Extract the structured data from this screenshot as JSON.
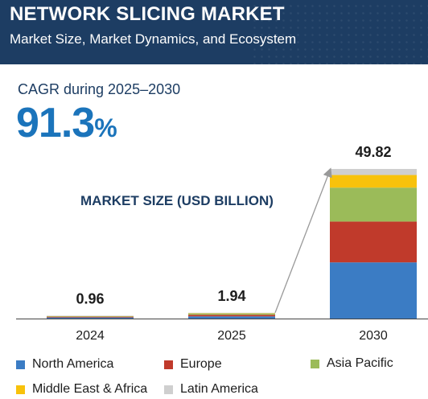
{
  "header": {
    "title": "NETWORK SLICING MARKET",
    "subtitle": "Market Size, Market Dynamics, and Ecosystem"
  },
  "cagr": {
    "label": "CAGR during 2025–2030",
    "value": "91.3",
    "unit": "%"
  },
  "chart_data": {
    "type": "bar",
    "stacked": true,
    "title": "MARKET SIZE (USD BILLION)",
    "categories": [
      "2024",
      "2025",
      "2030"
    ],
    "totals": [
      "0.96",
      "1.94",
      "49.82"
    ],
    "series": [
      {
        "name": "North America",
        "color": "#3b7cc4",
        "values": [
          0.36,
          0.73,
          18.7
        ]
      },
      {
        "name": "Europe",
        "color": "#c03a2b",
        "values": [
          0.26,
          0.53,
          13.6
        ]
      },
      {
        "name": "Asia Pacific",
        "color": "#9bbb59",
        "values": [
          0.22,
          0.44,
          11.3
        ]
      },
      {
        "name": "Middle East & Africa",
        "color": "#f8c20b",
        "values": [
          0.08,
          0.16,
          4.2
        ]
      },
      {
        "name": "Latin America",
        "color": "#cfcfcf",
        "values": [
          0.04,
          0.08,
          2.02
        ]
      }
    ],
    "growth_arrow": {
      "from": "2025",
      "to": "2030"
    },
    "grid": false,
    "legend_position": "bottom"
  },
  "colors": {
    "header_bg": "#1d3d63",
    "accent": "#1b74bb",
    "axis": "#444444",
    "arrow": "#999999"
  }
}
